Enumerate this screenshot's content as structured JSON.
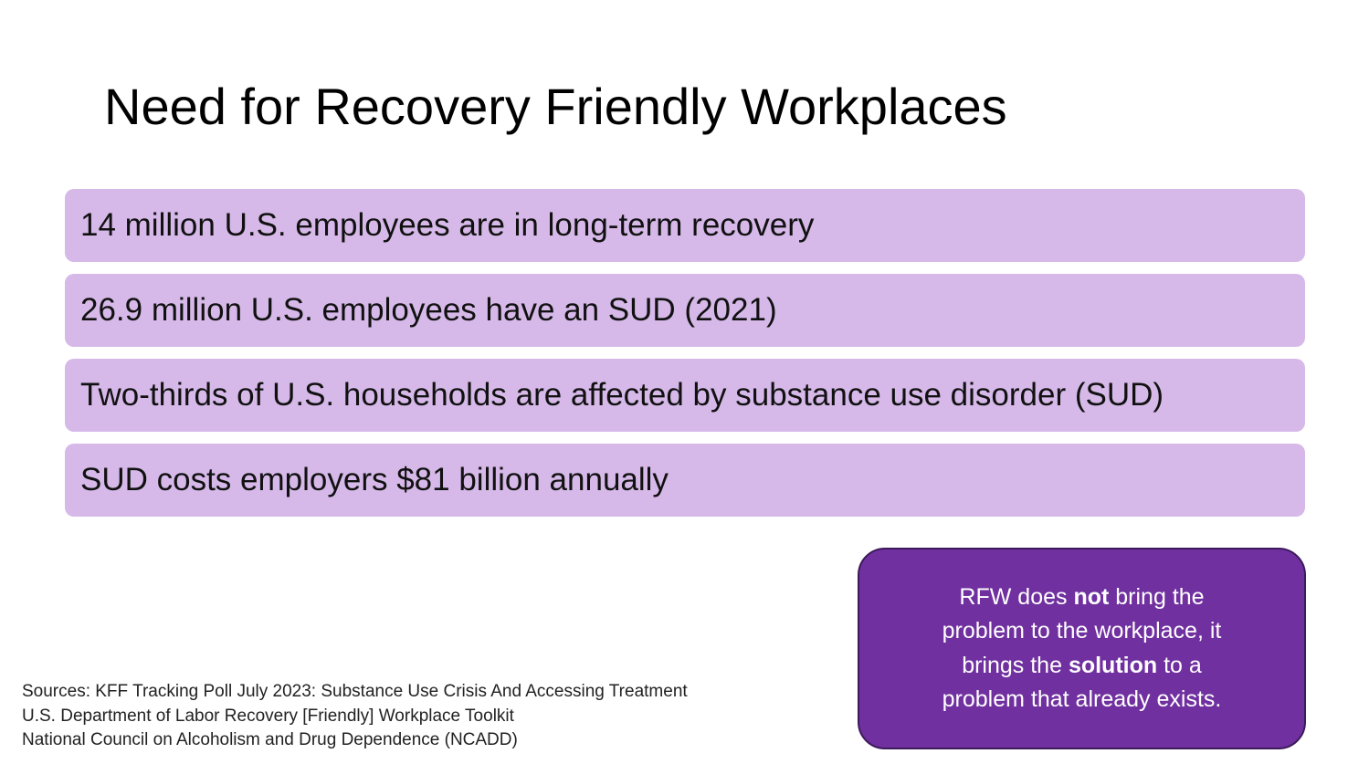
{
  "title": "Need for Recovery Friendly Workplaces",
  "items": [
    "14 million U.S. employees are in long-term recovery",
    "26.9 million U.S. employees have an SUD (2021)",
    "Two-thirds of U.S. households are affected by substance use disorder (SUD)",
    "SUD costs employers $81 billion annually"
  ],
  "callout": {
    "lines": [
      [
        {
          "text": "RFW does "
        },
        {
          "text": "not",
          "bold": true
        },
        {
          "text": " bring the"
        }
      ],
      [
        {
          "text": "problem to the workplace, it"
        }
      ],
      [
        {
          "text": "brings the "
        },
        {
          "text": "solution",
          "bold": true
        },
        {
          "text": " to a"
        }
      ],
      [
        {
          "text": "problem that already exists."
        }
      ]
    ]
  },
  "sources": [
    "Sources: KFF Tracking Poll July 2023: Substance Use Crisis And Accessing Treatment",
    "U.S. Department of Labor Recovery [Friendly] Workplace Toolkit",
    "National Council on Alcoholism and Drug Dependence (NCADD)"
  ]
}
